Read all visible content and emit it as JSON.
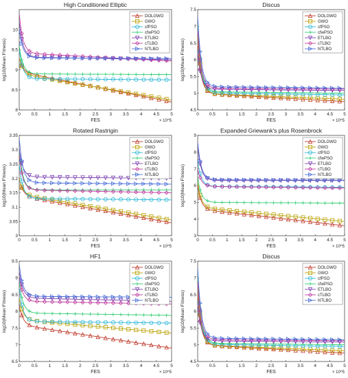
{
  "legend_labels": [
    "DOLGWO",
    "GWO",
    "cfPSO",
    "cfwPSO",
    "ETLBO",
    "cTLBO",
    "NTLBO"
  ],
  "series_styles": [
    {
      "color": "#c0392b",
      "marker": "triangle-up"
    },
    {
      "color": "#b8a000",
      "marker": "square"
    },
    {
      "color": "#29b6d6",
      "marker": "circle"
    },
    {
      "color": "#2ecc71",
      "marker": "cross"
    },
    {
      "color": "#7b3fb0",
      "marker": "triangle-down"
    },
    {
      "color": "#c03a9e",
      "marker": "diamond"
    },
    {
      "color": "#4a6fd8",
      "marker": "triangle-right"
    }
  ],
  "chart_data": [
    {
      "type": "line",
      "title": "High Conditioned Elliptic",
      "xlabel": "FES",
      "ylabel": "log10(Mean Fitness)",
      "x_exponent": "× 10^5",
      "xlim": [
        0,
        5
      ],
      "ylim": [
        8,
        10.5
      ],
      "xticks": [
        "0",
        "0.5",
        "1",
        "1.5",
        "2",
        "2.5",
        "3",
        "3.5",
        "4",
        "4.5",
        "5"
      ],
      "yticks": [
        "8",
        "8.5",
        "9",
        "9.5",
        "10"
      ],
      "legend_position": "top-right",
      "grid": false,
      "series": [
        {
          "name": "DOLGWO",
          "start": 9.3,
          "plateau": 8.95,
          "end": 8.2
        },
        {
          "name": "GWO",
          "start": 9.3,
          "plateau": 8.9,
          "end": 8.25
        },
        {
          "name": "cfPSO",
          "start": 9.5,
          "plateau": 8.78,
          "end": 8.75
        },
        {
          "name": "cfwPSO",
          "start": 9.6,
          "plateau": 8.9,
          "end": 8.88
        },
        {
          "name": "ETLBO",
          "start": 10.2,
          "plateau": 9.32,
          "end": 9.25
        },
        {
          "name": "cTLBO",
          "start": 10.4,
          "plateau": 9.42,
          "end": 9.22
        },
        {
          "name": "NTLBO",
          "start": 10.0,
          "plateau": 9.3,
          "end": 9.28
        }
      ]
    },
    {
      "type": "line",
      "title": "Discus",
      "xlabel": "FES",
      "ylabel": "log10(Mean Fitness)",
      "x_exponent": "× 10^5",
      "xlim": [
        0,
        5
      ],
      "ylim": [
        4.5,
        7.5
      ],
      "xticks": [
        "0",
        "0.5",
        "1",
        "1.5",
        "2",
        "2.5",
        "3",
        "3.5",
        "4",
        "4.5",
        "5"
      ],
      "yticks": [
        "4.5",
        "5",
        "5.5",
        "6",
        "6.5",
        "7",
        "7.5"
      ],
      "legend_position": "top-right",
      "grid": false,
      "series": [
        {
          "name": "DOLGWO",
          "start": 6.5,
          "plateau": 5.0,
          "end": 4.75
        },
        {
          "name": "GWO",
          "start": 6.8,
          "plateau": 5.0,
          "end": 4.82
        },
        {
          "name": "cfPSO",
          "start": 7.0,
          "plateau": 5.02,
          "end": 4.95
        },
        {
          "name": "cfwPSO",
          "start": 7.1,
          "plateau": 5.05,
          "end": 5.0
        },
        {
          "name": "ETLBO",
          "start": 6.2,
          "plateau": 5.12,
          "end": 5.08
        },
        {
          "name": "cTLBO",
          "start": 6.9,
          "plateau": 5.15,
          "end": 5.12
        },
        {
          "name": "NTLBO",
          "start": 7.3,
          "plateau": 5.2,
          "end": 5.15
        }
      ]
    },
    {
      "type": "line",
      "title": "Rotated Rastrigin",
      "xlabel": "FES",
      "ylabel": "log10(Mean Fitness)",
      "x_exponent": "× 10^5",
      "xlim": [
        0,
        5
      ],
      "ylim": [
        3,
        3.35
      ],
      "xticks": [
        "0",
        "0.5",
        "1",
        "1.5",
        "2",
        "2.5",
        "3",
        "3.5",
        "4",
        "4.5",
        "5"
      ],
      "yticks": [
        "3",
        "3.05",
        "3.1",
        "3.15",
        "3.2",
        "3.25",
        "3.3",
        "3.35"
      ],
      "legend_position": "top-right",
      "grid": false,
      "series": [
        {
          "name": "DOLGWO",
          "start": 3.2,
          "plateau": 3.14,
          "end": 3.045
        },
        {
          "name": "GWO",
          "start": 3.2,
          "plateau": 3.145,
          "end": 3.055
        },
        {
          "name": "cfPSO",
          "start": 3.25,
          "plateau": 3.13,
          "end": 3.125
        },
        {
          "name": "cfwPSO",
          "start": 3.3,
          "plateau": 3.16,
          "end": 3.16
        },
        {
          "name": "ETLBO",
          "start": 3.3,
          "plateau": 3.205,
          "end": 3.2
        },
        {
          "name": "cTLBO",
          "start": 3.28,
          "plateau": 3.16,
          "end": 3.15
        },
        {
          "name": "NTLBO",
          "start": 3.34,
          "plateau": 3.185,
          "end": 3.18
        }
      ]
    },
    {
      "type": "line",
      "title": "Expanded Griewank's plus Rosenbrock",
      "xlabel": "FES",
      "ylabel": "log10(Mean Fitness)",
      "x_exponent": "× 10^5",
      "xlim": [
        0,
        5
      ],
      "ylim": [
        3,
        9
      ],
      "xticks": [
        "0",
        "0.5",
        "1",
        "1.5",
        "2",
        "2.5",
        "3",
        "3.5",
        "4",
        "4.5",
        "5"
      ],
      "yticks": [
        "3",
        "4",
        "5",
        "6",
        "7",
        "8",
        "9"
      ],
      "legend_position": "top-right",
      "grid": false,
      "series": [
        {
          "name": "DOLGWO",
          "start": 6.0,
          "plateau": 4.6,
          "end": 3.6
        },
        {
          "name": "GWO",
          "start": 6.2,
          "plateau": 4.7,
          "end": 3.85
        },
        {
          "name": "cfPSO",
          "start": 7.5,
          "plateau": 5.95,
          "end": 5.9
        },
        {
          "name": "cfwPSO",
          "start": 6.5,
          "plateau": 5.0,
          "end": 4.95
        },
        {
          "name": "ETLBO",
          "start": 8.3,
          "plateau": 6.3,
          "end": 6.3
        },
        {
          "name": "cTLBO",
          "start": 7.0,
          "plateau": 5.95,
          "end": 5.85
        },
        {
          "name": "NTLBO",
          "start": 8.6,
          "plateau": 6.35,
          "end": 6.32
        }
      ]
    },
    {
      "type": "line",
      "title": "HF1",
      "xlabel": "FES",
      "ylabel": "log10(Mean Fitness)",
      "x_exponent": "× 10^5",
      "xlim": [
        0,
        5
      ],
      "ylim": [
        6.5,
        9.5
      ],
      "xticks": [
        "0",
        "0.5",
        "1",
        "1.5",
        "2",
        "2.5",
        "3",
        "3.5",
        "4",
        "4.5",
        "5"
      ],
      "yticks": [
        "6.5",
        "7",
        "7.5",
        "8",
        "8.5",
        "9",
        "9.5"
      ],
      "legend_position": "top-right",
      "grid": false,
      "series": [
        {
          "name": "DOLGWO",
          "start": 8.2,
          "plateau": 7.6,
          "end": 6.9
        },
        {
          "name": "GWO",
          "start": 8.4,
          "plateau": 7.75,
          "end": 7.35
        },
        {
          "name": "cfPSO",
          "start": 8.7,
          "plateau": 7.7,
          "end": 7.65
        },
        {
          "name": "cfwPSO",
          "start": 8.9,
          "plateau": 7.95,
          "end": 7.88
        },
        {
          "name": "ETLBO",
          "start": 9.2,
          "plateau": 8.4,
          "end": 8.3
        },
        {
          "name": "cTLBO",
          "start": 9.0,
          "plateau": 8.3,
          "end": 8.22
        },
        {
          "name": "NTLBO",
          "start": 9.4,
          "plateau": 8.45,
          "end": 8.42
        }
      ]
    },
    {
      "type": "line",
      "title": "Discus",
      "xlabel": "FES",
      "ylabel": "log10(Mean Fitness)",
      "x_exponent": "× 10^5",
      "xlim": [
        0,
        5
      ],
      "ylim": [
        4.5,
        7.5
      ],
      "xticks": [
        "0",
        "0.5",
        "1",
        "1.5",
        "2",
        "2.5",
        "3",
        "3.5",
        "4",
        "4.5",
        "5"
      ],
      "yticks": [
        "4.5",
        "5",
        "5.5",
        "6",
        "6.5",
        "7",
        "7.5"
      ],
      "legend_position": "top-right",
      "grid": false,
      "series": [
        {
          "name": "DOLGWO",
          "start": 6.5,
          "plateau": 5.0,
          "end": 4.75
        },
        {
          "name": "GWO",
          "start": 6.8,
          "plateau": 5.0,
          "end": 4.82
        },
        {
          "name": "cfPSO",
          "start": 7.0,
          "plateau": 5.02,
          "end": 4.95
        },
        {
          "name": "cfwPSO",
          "start": 7.1,
          "plateau": 5.05,
          "end": 5.0
        },
        {
          "name": "ETLBO",
          "start": 6.2,
          "plateau": 5.12,
          "end": 5.08
        },
        {
          "name": "cTLBO",
          "start": 6.9,
          "plateau": 5.15,
          "end": 5.12
        },
        {
          "name": "NTLBO",
          "start": 7.3,
          "plateau": 5.2,
          "end": 5.15
        }
      ]
    }
  ]
}
